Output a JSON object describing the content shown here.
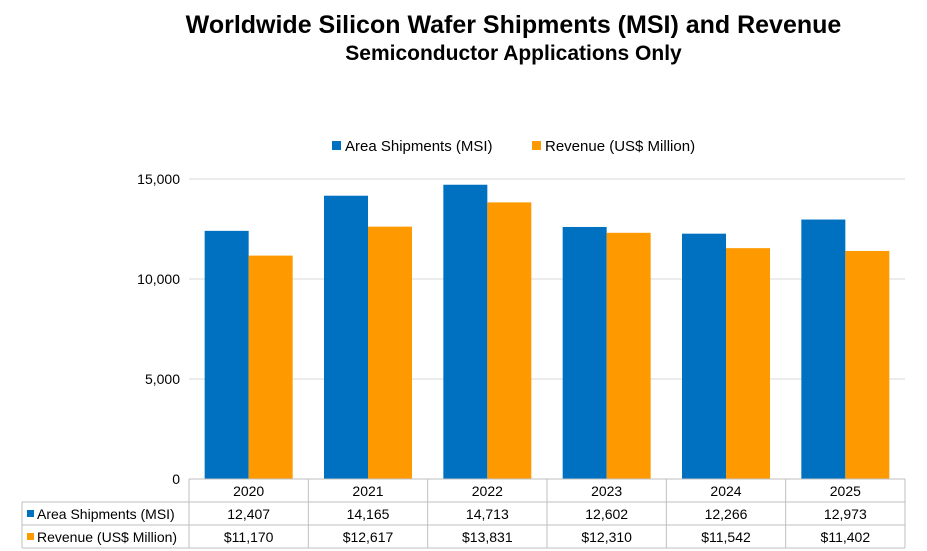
{
  "chart_data": {
    "type": "bar",
    "title": "Worldwide Silicon Wafer Shipments (MSI) and Revenue",
    "subtitle": "Semiconductor Applications Only",
    "categories": [
      "2020",
      "2021",
      "2022",
      "2023",
      "2024",
      "2025"
    ],
    "series": [
      {
        "name": "Area Shipments (MSI)",
        "color": "#0070C0",
        "values": [
          12407,
          14165,
          14713,
          12602,
          12266,
          12973
        ],
        "labels": [
          "12,407",
          "14,165",
          "14,713",
          "12,602",
          "12,266",
          "12,973"
        ]
      },
      {
        "name": "Revenue (US$ Million)",
        "color": "#FF9900",
        "values": [
          11170,
          12617,
          13831,
          12310,
          11542,
          11402
        ],
        "labels": [
          "$11,170",
          "$12,617",
          "$13,831",
          "$12,310",
          "$11,542",
          "$11,402"
        ]
      }
    ],
    "ylim": [
      0,
      15000
    ],
    "yticks": [
      0,
      5000,
      10000,
      15000
    ],
    "ytick_labels": [
      "0",
      "5,000",
      "10,000",
      "15,000"
    ],
    "grid": true,
    "legend_position": "top",
    "data_table": true
  }
}
